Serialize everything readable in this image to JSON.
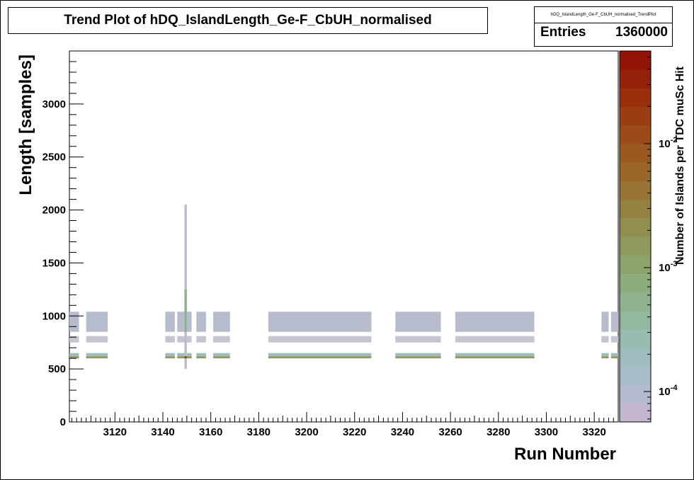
{
  "title": "Trend Plot of hDQ_IslandLength_Ge-F_CbUH_normalised",
  "stats": {
    "name": "hDQ_IslandLength_Ge-F_CbUH_normalised_TrendPlot",
    "entries_label": "Entries",
    "entries_value": "1360000"
  },
  "chart_data": {
    "type": "heatmap",
    "xlabel": "Run Number",
    "ylabel": "Length [samples]",
    "zlabel": "Number of Islands per TDC muSc Hit",
    "xlim": [
      3101,
      3330
    ],
    "ylim": [
      0,
      3500
    ],
    "x_ticks": [
      3120,
      3140,
      3160,
      3180,
      3200,
      3220,
      3240,
      3260,
      3280,
      3300,
      3320
    ],
    "y_ticks": [
      500,
      1000,
      1500,
      2000,
      2500,
      3000
    ],
    "z_scale": "log",
    "z_ticks": [
      "10^-4",
      "10^-3",
      "10^-2"
    ],
    "palette": [
      "#c2b7cf",
      "#b4bbd0",
      "#a8bcc9",
      "#9fbcbf",
      "#98bcb0",
      "#93b89f",
      "#8fb38d",
      "#8dad7c",
      "#8da46d",
      "#8e9a5d",
      "#918e4f",
      "#948142",
      "#977435",
      "#9a6729",
      "#9b591f",
      "#9c4b18",
      "#9b3d12",
      "#992f0d",
      "#96210a",
      "#931407"
    ],
    "run_ranges": [
      [
        3101,
        3105
      ],
      [
        3108,
        3117
      ],
      [
        3141,
        3145
      ],
      [
        3146,
        3149
      ],
      [
        3150,
        3152
      ],
      [
        3154,
        3158
      ],
      [
        3161,
        3168
      ],
      [
        3184,
        3227
      ],
      [
        3237,
        3256
      ],
      [
        3262,
        3295
      ],
      [
        3323,
        3326
      ],
      [
        3327,
        3330
      ]
    ],
    "bands": [
      {
        "y": [
          850,
          1040
        ],
        "level": 1
      },
      {
        "y": [
          750,
          810
        ],
        "level": 0
      },
      {
        "y": [
          620,
          650
        ],
        "level": 3
      },
      {
        "y": [
          600,
          620
        ],
        "level": 9
      }
    ],
    "spike": {
      "x": [
        3149,
        3150
      ],
      "y": [
        500,
        2050
      ]
    }
  },
  "colors": {
    "frame": "#000000",
    "background": "#ffffff",
    "band_top": "#b7bccd",
    "band_mid": "#c4c4d2"
  }
}
